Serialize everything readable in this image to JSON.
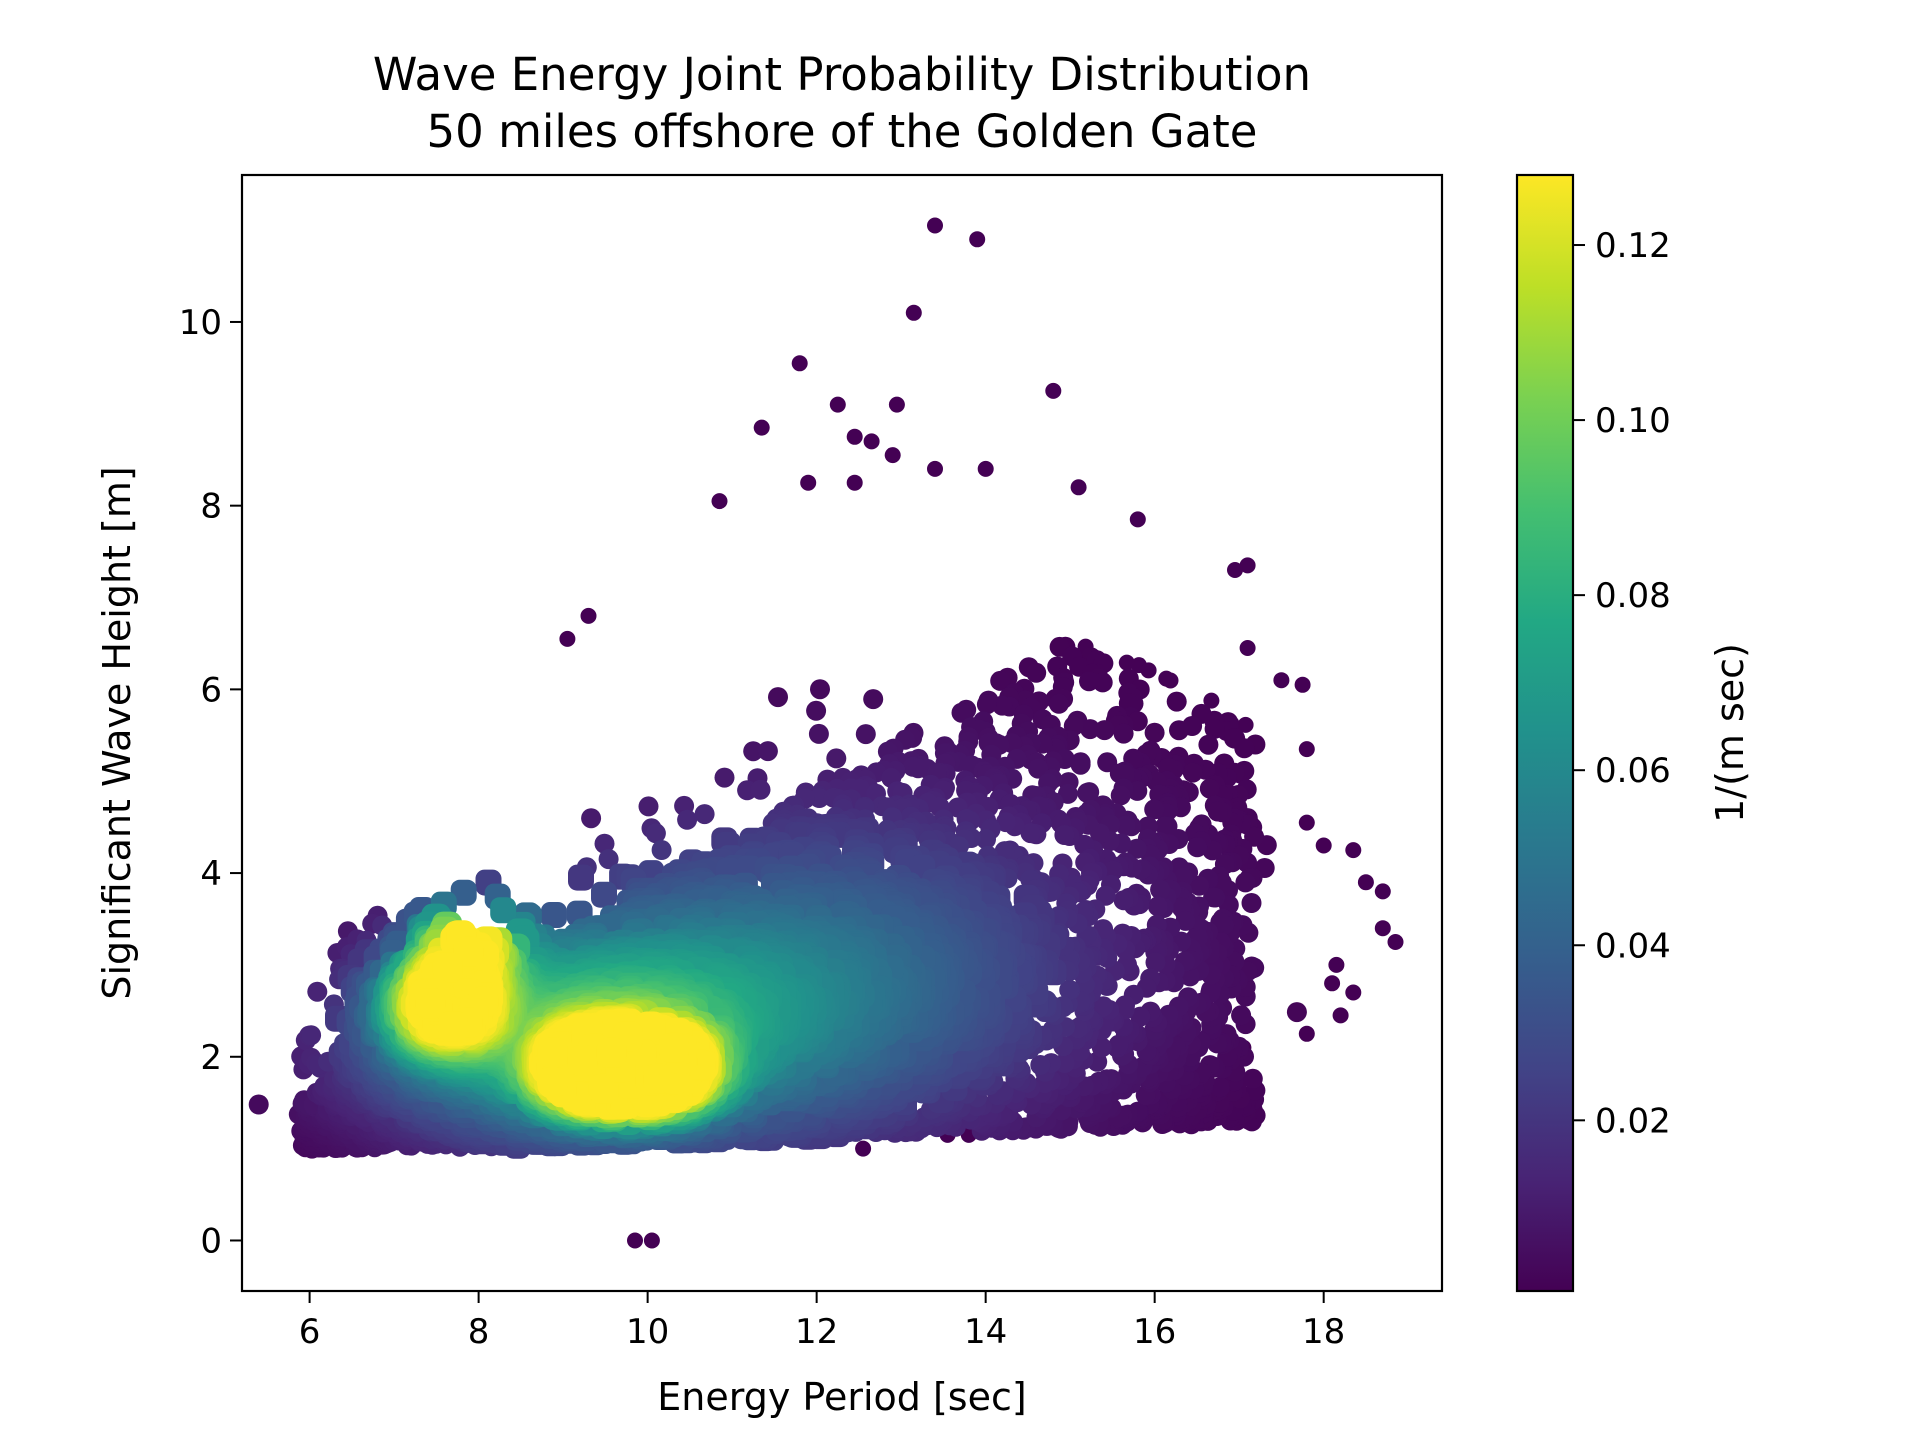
{
  "chart_data": {
    "type": "scatter",
    "title": [
      "Wave Energy Joint Probability Distribution",
      "50 miles offshore of the Golden Gate"
    ],
    "xlabel": "Energy Period [sec]",
    "ylabel": "Significant Wave Height [m]",
    "xlim": [
      5.2,
      19.4
    ],
    "ylim": [
      -0.55,
      11.6
    ],
    "xticks": [
      6,
      8,
      10,
      12,
      14,
      16,
      18
    ],
    "yticks": [
      0,
      2,
      4,
      6,
      8,
      10
    ],
    "colorbar": {
      "label": "1/(m sec)",
      "range": [
        0.0005,
        0.128
      ],
      "ticks": [
        "0.02",
        "0.04",
        "0.06",
        "0.08",
        "0.10",
        "0.12"
      ],
      "tick_values": [
        0.02,
        0.04,
        0.06,
        0.08,
        0.1,
        0.12
      ],
      "colormap": "viridis"
    },
    "grid": false,
    "density_peaks": [
      {
        "x": 9.4,
        "y": 1.85,
        "value": 0.125
      },
      {
        "x": 10.1,
        "y": 1.85,
        "value": 0.122
      },
      {
        "x": 7.6,
        "y": 2.6,
        "value": 0.11
      },
      {
        "x": 7.9,
        "y": 3.3,
        "value": 0.095
      }
    ],
    "outliers": [
      {
        "x": 13.4,
        "y": 11.05
      },
      {
        "x": 13.9,
        "y": 10.9
      },
      {
        "x": 13.15,
        "y": 10.1
      },
      {
        "x": 11.8,
        "y": 9.55
      },
      {
        "x": 14.8,
        "y": 9.25
      },
      {
        "x": 12.25,
        "y": 9.1
      },
      {
        "x": 12.95,
        "y": 9.1
      },
      {
        "x": 11.35,
        "y": 8.85
      },
      {
        "x": 12.45,
        "y": 8.75
      },
      {
        "x": 12.65,
        "y": 8.7
      },
      {
        "x": 12.9,
        "y": 8.55
      },
      {
        "x": 13.4,
        "y": 8.4
      },
      {
        "x": 14.0,
        "y": 8.4
      },
      {
        "x": 12.45,
        "y": 8.25
      },
      {
        "x": 11.9,
        "y": 8.25
      },
      {
        "x": 15.1,
        "y": 8.2
      },
      {
        "x": 10.85,
        "y": 8.05
      },
      {
        "x": 15.8,
        "y": 7.85
      },
      {
        "x": 17.1,
        "y": 7.35
      },
      {
        "x": 16.95,
        "y": 7.3
      },
      {
        "x": 9.3,
        "y": 6.8
      },
      {
        "x": 9.05,
        "y": 6.55
      },
      {
        "x": 17.1,
        "y": 6.45
      },
      {
        "x": 17.5,
        "y": 6.1
      },
      {
        "x": 17.75,
        "y": 6.05
      },
      {
        "x": 17.8,
        "y": 5.35
      },
      {
        "x": 17.8,
        "y": 4.55
      },
      {
        "x": 18.0,
        "y": 4.3
      },
      {
        "x": 18.35,
        "y": 4.25
      },
      {
        "x": 18.5,
        "y": 3.9
      },
      {
        "x": 18.7,
        "y": 3.8
      },
      {
        "x": 18.7,
        "y": 3.4
      },
      {
        "x": 18.85,
        "y": 3.25
      },
      {
        "x": 18.15,
        "y": 3.0
      },
      {
        "x": 18.1,
        "y": 2.8
      },
      {
        "x": 18.35,
        "y": 2.7
      },
      {
        "x": 18.2,
        "y": 2.45
      },
      {
        "x": 17.8,
        "y": 2.25
      },
      {
        "x": 17.05,
        "y": 2.1
      },
      {
        "x": 16.8,
        "y": 1.85
      },
      {
        "x": 16.75,
        "y": 1.5
      },
      {
        "x": 15.65,
        "y": 1.3
      },
      {
        "x": 9.85,
        "y": 0.0
      },
      {
        "x": 10.05,
        "y": 0.0
      },
      {
        "x": 12.55,
        "y": 1.0
      },
      {
        "x": 13.8,
        "y": 1.15
      },
      {
        "x": 13.55,
        "y": 1.15
      }
    ]
  }
}
